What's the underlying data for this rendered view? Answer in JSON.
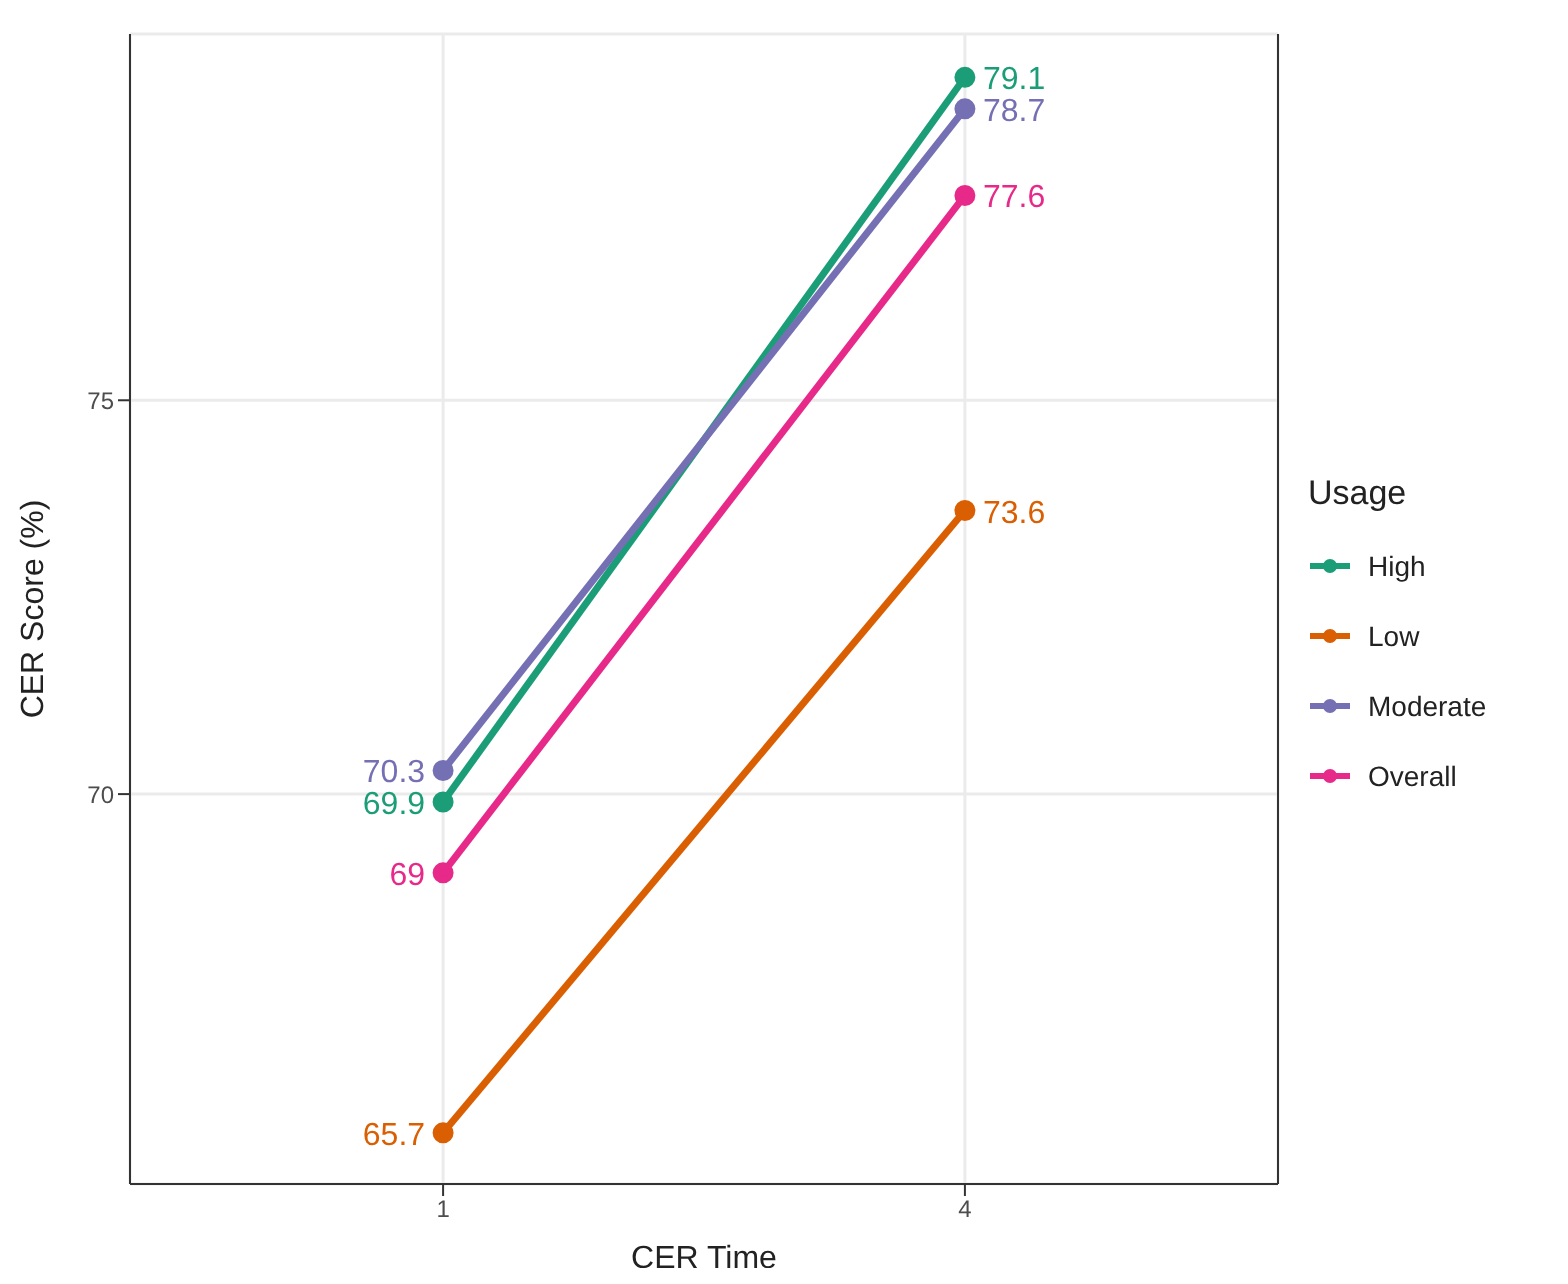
{
  "chart_data": {
    "type": "line",
    "xlabel": "CER Time",
    "ylabel": "CER Score (%)",
    "legend_title": "Usage",
    "categories": [
      "1",
      "4"
    ],
    "series": [
      {
        "name": "High",
        "color": "#1b9e77",
        "values": [
          69.9,
          79.1
        ]
      },
      {
        "name": "Low",
        "color": "#d95f02",
        "values": [
          65.7,
          73.6
        ]
      },
      {
        "name": "Moderate",
        "color": "#7570b3",
        "values": [
          70.3,
          78.7
        ]
      },
      {
        "name": "Overall",
        "color": "#e7298a",
        "values": [
          69,
          77.6
        ]
      }
    ],
    "ylim": [
      65.05,
      79.65
    ],
    "yticks": [
      70,
      75
    ],
    "grid": true,
    "legend": "right",
    "marker": "circle",
    "data_labels": true
  }
}
